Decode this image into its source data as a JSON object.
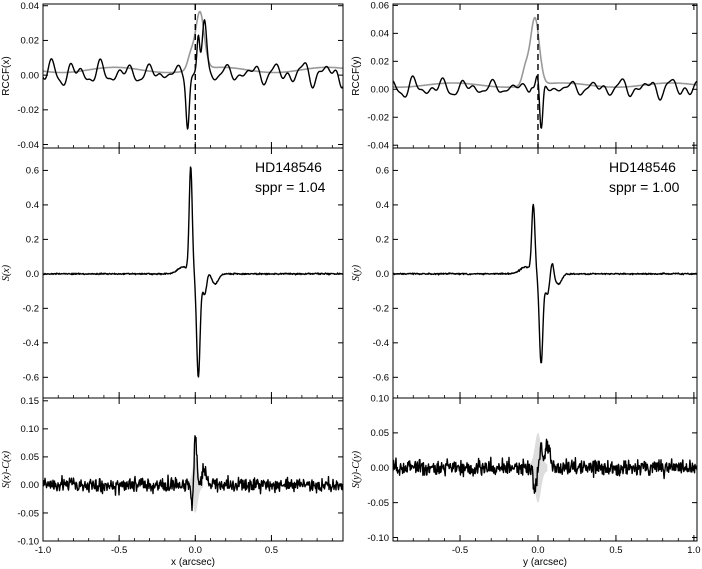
{
  "chart_data": [
    {
      "id": "left-top",
      "type": "line",
      "ylabel": "RCCF(x)",
      "xlim": [
        -1.0,
        0.97
      ],
      "ylim": [
        -0.042,
        0.041
      ],
      "yticks": [
        -0.04,
        -0.02,
        0.0,
        0.02,
        0.04
      ],
      "ytick_labels": [
        "-0.04",
        "-0.02",
        "0.00",
        "0.02",
        "0.04"
      ],
      "vline": 0.0,
      "series": [
        {
          "color": "#999999",
          "kind": "gray-rccf",
          "peak_x": 0.03,
          "peak": 0.033,
          "base": 0.003
        },
        {
          "color": "#000000",
          "kind": "black-rccf",
          "min_x": -0.05,
          "min": -0.029,
          "max_x": 0.06,
          "max": 0.031
        }
      ]
    },
    {
      "id": "left-mid",
      "type": "line",
      "ylabel": "S(x)",
      "xlim": [
        -1.0,
        0.97
      ],
      "ylim": [
        -0.72,
        0.73
      ],
      "yticks": [
        -0.6,
        -0.4,
        -0.2,
        0.0,
        0.2,
        0.4,
        0.6
      ],
      "ytick_labels": [
        "-0.6",
        "-0.4",
        "-0.2",
        "0.0",
        "0.2",
        "0.4",
        "0.6"
      ],
      "annotation": [
        "HD148546",
        "sppr = 1.04"
      ],
      "series": [
        {
          "color": "#000000",
          "kind": "signature",
          "peak_x": -0.03,
          "peak": 0.61,
          "trough_x": 0.02,
          "trough": -0.6
        }
      ]
    },
    {
      "id": "left-bot",
      "type": "line",
      "ylabel": "S(x)-C(x)",
      "xlabel": "x (arcsec)",
      "xlim": [
        -1.0,
        0.97
      ],
      "ylim": [
        -0.1,
        0.155
      ],
      "yticks": [
        -0.1,
        -0.05,
        0.0,
        0.05,
        0.1,
        0.15
      ],
      "ytick_labels": [
        "-0.10",
        "-0.05",
        "0.00",
        "0.05",
        "0.10",
        "0.15"
      ],
      "xticks": [
        -1.0,
        -0.5,
        0.0,
        0.5
      ],
      "xtick_labels": [
        "-1.0",
        "-0.5",
        "0.0",
        "0.5"
      ],
      "series": [
        {
          "color": "#dddddd",
          "kind": "residual-band",
          "center_x": 0.0,
          "halfwidth": 0.05
        },
        {
          "color": "#000000",
          "kind": "residual",
          "peak_x": 0.0,
          "peak": 0.09,
          "noise": 0.012
        }
      ]
    },
    {
      "id": "right-top",
      "type": "line",
      "ylabel": "RCCF(y)",
      "xlim": [
        -0.93,
        1.02
      ],
      "ylim": [
        -0.042,
        0.061
      ],
      "yticks": [
        -0.04,
        -0.02,
        0.0,
        0.02,
        0.04,
        0.06
      ],
      "ytick_labels": [
        "-0.04",
        "-0.02",
        "0.00",
        "0.02",
        "0.04",
        "0.06"
      ],
      "vline": 0.0,
      "series": [
        {
          "color": "#999999",
          "kind": "gray-rccf",
          "peak_x": -0.02,
          "peak": 0.048,
          "base": 0.003
        },
        {
          "color": "#000000",
          "kind": "black-rccf",
          "min_x": 0.02,
          "min": -0.037,
          "max_x": 0.0,
          "max": 0.012
        }
      ]
    },
    {
      "id": "right-mid",
      "type": "line",
      "ylabel": "S(y)",
      "xlim": [
        -0.93,
        1.02
      ],
      "ylim": [
        -0.72,
        0.73
      ],
      "yticks": [
        -0.6,
        -0.4,
        -0.2,
        0.0,
        0.2,
        0.4,
        0.6
      ],
      "ytick_labels": [
        "-0.6",
        "-0.4",
        "-0.2",
        "0.0",
        "0.2",
        "0.4",
        "0.6"
      ],
      "annotation": [
        "HD148546",
        "sppr = 1.00"
      ],
      "series": [
        {
          "color": "#000000",
          "kind": "signature",
          "peak_x": -0.03,
          "peak": 0.39,
          "trough_x": 0.02,
          "trough": -0.52
        }
      ]
    },
    {
      "id": "right-bot",
      "type": "line",
      "ylabel": "S(y)-C(y)",
      "xlabel": "y (arcsec)",
      "xlim": [
        -0.93,
        1.02
      ],
      "ylim": [
        -0.105,
        0.1
      ],
      "yticks": [
        -0.1,
        -0.05,
        0.0,
        0.05,
        0.1
      ],
      "ytick_labels": [
        "-0.10",
        "-0.05",
        "0.00",
        "0.05",
        "0.10"
      ],
      "xticks": [
        -0.5,
        0.0,
        0.5,
        1.0
      ],
      "xtick_labels": [
        "-0.5",
        "0.0",
        "0.5",
        "1.0"
      ],
      "series": [
        {
          "color": "#dddddd",
          "kind": "residual-band",
          "center_x": 0.0,
          "halfwidth": 0.06
        },
        {
          "color": "#000000",
          "kind": "residual",
          "peak_x": 0.02,
          "peak": 0.03,
          "noise": 0.011
        }
      ]
    }
  ]
}
